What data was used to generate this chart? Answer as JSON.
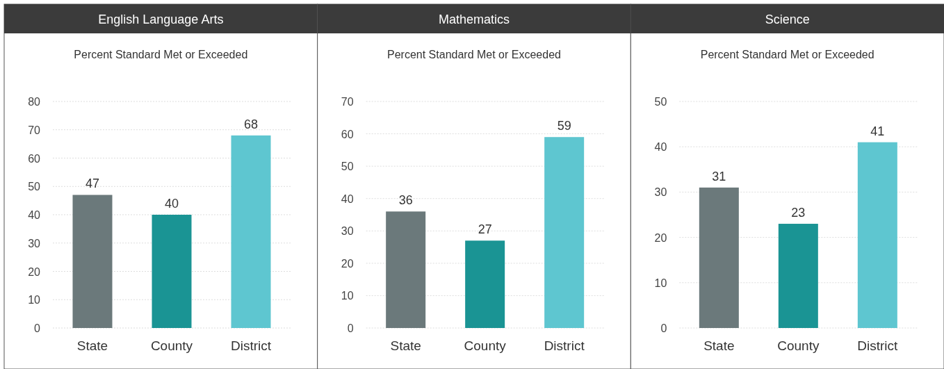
{
  "chart_data": [
    {
      "type": "bar",
      "title": "English Language Arts",
      "subtitle": "Percent Standard Met or Exceeded",
      "categories": [
        "State",
        "County",
        "District"
      ],
      "values": [
        47,
        40,
        68
      ],
      "colors": [
        "#6b797b",
        "#1a9494",
        "#5ec6d0"
      ],
      "ylim": [
        0,
        80
      ],
      "yticks": [
        0,
        10,
        20,
        30,
        40,
        50,
        60,
        70,
        80
      ],
      "grid": "y",
      "data_labels": true
    },
    {
      "type": "bar",
      "title": "Mathematics",
      "subtitle": "Percent Standard Met or Exceeded",
      "categories": [
        "State",
        "County",
        "District"
      ],
      "values": [
        36,
        27,
        59
      ],
      "colors": [
        "#6b797b",
        "#1a9494",
        "#5ec6d0"
      ],
      "ylim": [
        0,
        70
      ],
      "yticks": [
        0,
        10,
        20,
        30,
        40,
        50,
        60,
        70
      ],
      "grid": "y",
      "data_labels": true
    },
    {
      "type": "bar",
      "title": "Science",
      "subtitle": "Percent Standard Met or Exceeded",
      "categories": [
        "State",
        "County",
        "District"
      ],
      "values": [
        31,
        23,
        41
      ],
      "colors": [
        "#6b797b",
        "#1a9494",
        "#5ec6d0"
      ],
      "ylim": [
        0,
        50
      ],
      "yticks": [
        0,
        10,
        20,
        30,
        40,
        50
      ],
      "grid": "y",
      "data_labels": true
    }
  ]
}
